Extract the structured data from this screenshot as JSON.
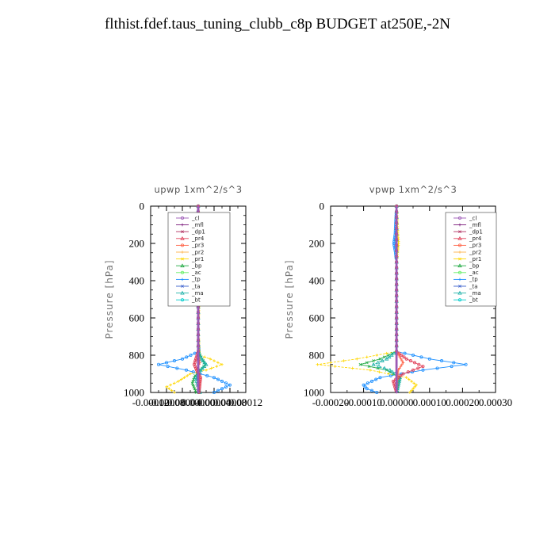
{
  "title": "flthist.fdef.taus_tuning_clubb_c8p  BUDGET at250E,-2N",
  "colors": {
    "_cl": "#9b59b6",
    "_mfl": "#7b1a7b",
    "_dp1": "#b03060",
    "_pr4": "#e0425a",
    "_pr3": "#ff6347",
    "_pr2": "#ffb347",
    "_pr1": "#ffd700",
    "_bp": "#22aa44",
    "_ac": "#66ee66",
    "_tp": "#1e90ff",
    "_ta": "#3a5fcd",
    "_ma": "#20b2aa",
    "_bt": "#00cccc"
  },
  "chart_data": [
    {
      "type": "line",
      "title": "upwp   1xm^2/s^3",
      "ylabel": "Pressure [hPa]",
      "xlim": [
        -0.00012,
        0.00012
      ],
      "ylim": [
        1000,
        0
      ],
      "x_ticks": [
        "-0.00012",
        "-0.00008",
        "-0.00004",
        "0.00000",
        "0.00004",
        "0.00008",
        "0.00012"
      ],
      "y_ticks": [
        "0",
        "200",
        "400",
        "600",
        "800",
        "1000"
      ],
      "legend_position": "top-right",
      "legend": [
        "_cl",
        "_mfl",
        "_dp1",
        "_pr4",
        "_pr3",
        "_pr2",
        "_pr1",
        "_bp",
        "_ac",
        "_tp",
        "_ta",
        "_ma",
        "_bt"
      ],
      "series": [
        {
          "name": "_tp",
          "color": "#1e90ff",
          "p": [
            0,
            100,
            150,
            180,
            200,
            220,
            260,
            300,
            400,
            480,
            600,
            700,
            780,
            820,
            850,
            880,
            920,
            960,
            980,
            1000
          ],
          "v": [
            0,
            -2e-06,
            -4e-06,
            -8e-06,
            -1e-05,
            -6e-06,
            -3e-06,
            -1e-06,
            0,
            -1e-06,
            0,
            0,
            2e-06,
            -4e-05,
            -0.0001,
            -3e-05,
            4e-05,
            8e-05,
            6e-05,
            4e-05
          ]
        },
        {
          "name": "_pr1",
          "color": "#ffd700",
          "p": [
            0,
            100,
            160,
            200,
            240,
            300,
            400,
            480,
            600,
            700,
            800,
            820,
            850,
            880,
            900,
            940,
            970,
            1000
          ],
          "v": [
            0,
            2e-06,
            4e-06,
            7e-06,
            5e-06,
            3e-06,
            2e-06,
            2e-06,
            1e-06,
            1e-06,
            3e-06,
            3e-05,
            6e-05,
            2e-05,
            -2e-05,
            -5e-05,
            -8e-05,
            -6e-05
          ]
        },
        {
          "name": "_bp",
          "color": "#22aa44",
          "p": [
            0,
            780,
            820,
            850,
            880,
            910,
            950,
            1000
          ],
          "v": [
            0,
            0,
            1e-05,
            1.8e-05,
            6e-06,
            -8e-06,
            -1.5e-05,
            -5e-06
          ]
        },
        {
          "name": "_ma",
          "color": "#20b2aa",
          "p": [
            0,
            780,
            820,
            850,
            880,
            920,
            1000
          ],
          "v": [
            0,
            0,
            8e-06,
            2e-05,
            6e-06,
            -6e-06,
            4e-06
          ]
        },
        {
          "name": "_pr4",
          "color": "#e0425a",
          "p": [
            0,
            780,
            820,
            850,
            880,
            920,
            960,
            1000
          ],
          "v": [
            0,
            0,
            -6e-06,
            -1e-05,
            -4e-06,
            6e-06,
            4e-06,
            2e-06
          ]
        },
        {
          "name": "_pr3",
          "color": "#ff6347",
          "p": [
            0,
            800,
            840,
            880,
            920,
            1000
          ],
          "v": [
            0,
            0,
            4e-06,
            -3e-06,
            3e-06,
            0
          ]
        },
        {
          "name": "_dp1",
          "color": "#b03060",
          "p": [
            0,
            1000
          ],
          "v": [
            0,
            0
          ]
        },
        {
          "name": "_mfl",
          "color": "#7b1a7b",
          "p": [
            0,
            1000
          ],
          "v": [
            0,
            0
          ]
        },
        {
          "name": "_cl",
          "color": "#9b59b6",
          "p": [
            0,
            1000
          ],
          "v": [
            0,
            0
          ]
        }
      ]
    },
    {
      "type": "line",
      "title": "vpwp   1xm^2/s^3",
      "ylabel": "Pressure [hPa]",
      "xlim": [
        -0.0002,
        0.0003
      ],
      "ylim": [
        1000,
        0
      ],
      "x_ticks": [
        "-0.00020",
        "-0.00010",
        "0.00000",
        "0.00010",
        "0.00020",
        "0.00030"
      ],
      "y_ticks": [
        "0",
        "200",
        "400",
        "600",
        "800",
        "1000"
      ],
      "legend_position": "top-right",
      "legend": [
        "_cl",
        "_mfl",
        "_dp1",
        "_pr4",
        "_pr3",
        "_pr2",
        "_pr1",
        "_bp",
        "_ac",
        "_tp",
        "_ta",
        "_ma",
        "_bt"
      ],
      "series": [
        {
          "name": "_tp",
          "color": "#1e90ff",
          "p": [
            0,
            150,
            200,
            250,
            300,
            780,
            820,
            850,
            880,
            920,
            960,
            980,
            1000
          ],
          "v": [
            0,
            -4e-06,
            -8e-06,
            -3e-06,
            0,
            0,
            0.0001,
            0.00021,
            8e-05,
            -5e-05,
            -0.0001,
            -9e-05,
            -6e-05
          ]
        },
        {
          "name": "_pr1",
          "color": "#ffd700",
          "p": [
            0,
            150,
            200,
            250,
            300,
            780,
            820,
            850,
            880,
            920,
            960,
            1000
          ],
          "v": [
            0,
            4e-06,
            6e-06,
            3e-06,
            0,
            0,
            -0.00012,
            -0.00024,
            -8e-05,
            3e-05,
            6e-05,
            4e-05
          ]
        },
        {
          "name": "_bp",
          "color": "#22aa44",
          "p": [
            0,
            780,
            820,
            850,
            880,
            920,
            1000
          ],
          "v": [
            0,
            0,
            -5e-05,
            -0.00011,
            -3e-05,
            1e-05,
            0
          ]
        },
        {
          "name": "_ma",
          "color": "#20b2aa",
          "p": [
            0,
            780,
            820,
            850,
            880,
            920,
            1000
          ],
          "v": [
            0,
            0,
            -3e-05,
            -7e-05,
            -2e-05,
            1e-05,
            0
          ]
        },
        {
          "name": "_pr4",
          "color": "#e0425a",
          "p": [
            0,
            780,
            820,
            860,
            900,
            940,
            1000
          ],
          "v": [
            0,
            0,
            3e-05,
            8e-05,
            2e-05,
            -1e-05,
            0
          ]
        },
        {
          "name": "_pr3",
          "color": "#ff6347",
          "p": [
            0,
            780,
            840,
            880,
            1000
          ],
          "v": [
            0,
            0,
            2e-05,
            5e-06,
            0
          ]
        },
        {
          "name": "_dp1",
          "color": "#b03060",
          "p": [
            0,
            1000
          ],
          "v": [
            0,
            0
          ]
        },
        {
          "name": "_mfl",
          "color": "#7b1a7b",
          "p": [
            0,
            1000
          ],
          "v": [
            0,
            0
          ]
        },
        {
          "name": "_cl",
          "color": "#9b59b6",
          "p": [
            0,
            1000
          ],
          "v": [
            0,
            0
          ]
        }
      ]
    }
  ]
}
